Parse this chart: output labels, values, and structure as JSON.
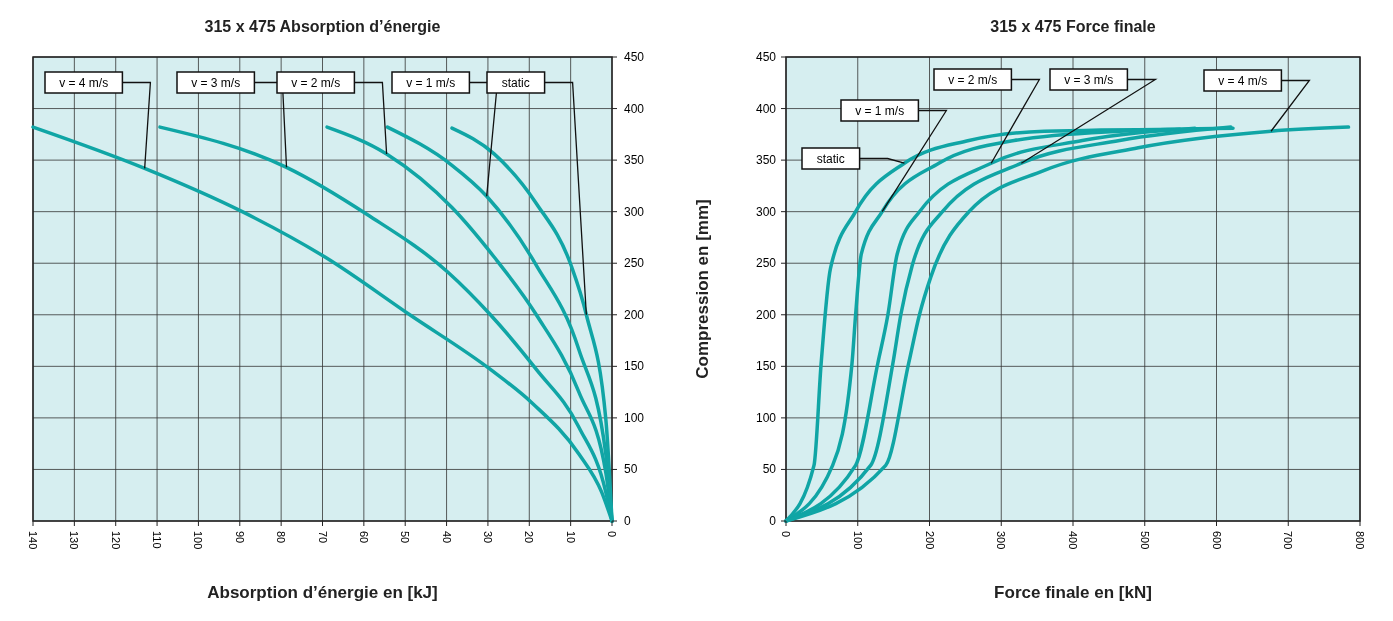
{
  "chart_data": [
    {
      "type": "line",
      "title": "315 x 475  Absorption d’énergie",
      "xlabel": "Absorption d’énergie en [kJ]",
      "xlim": [
        140,
        0
      ],
      "xticks": [
        140,
        130,
        120,
        110,
        100,
        90,
        80,
        70,
        60,
        50,
        40,
        30,
        20,
        10,
        0
      ],
      "ylim": [
        0,
        450
      ],
      "yticks": [
        0,
        50,
        100,
        150,
        200,
        250,
        300,
        350,
        400,
        450
      ],
      "grid": true,
      "series": [
        {
          "name": "v = 4 m/s",
          "color": "#10a5a5",
          "x": [
            140,
            113,
            89.4,
            69.4,
            48.9,
            29.4,
            19.2,
            8,
            2.5,
            0
          ],
          "values": [
            382,
            342,
            300,
            256,
            200,
            147,
            114,
            65,
            28,
            0
          ]
        },
        {
          "name": "v = 3 m/s",
          "color": "#10a5a5",
          "x": [
            109.3,
            78.7,
            59.1,
            39.6,
            29.4,
            18.3,
            8,
            1.5,
            0
          ],
          "values": [
            382,
            343,
            297,
            241,
            200,
            147,
            91,
            28,
            0
          ]
        },
        {
          "name": "v = 2 m/s",
          "color": "#10a5a5",
          "x": [
            68.9,
            54.5,
            38.7,
            28.5,
            18.3,
            8,
            1.5,
            0
          ],
          "values": [
            382,
            356,
            304,
            256,
            200,
            125,
            47,
            0
          ]
        },
        {
          "name": "v = 1 m/s",
          "color": "#10a5a5",
          "x": [
            54.3,
            38.7,
            30.3,
            18.3,
            8,
            1.5,
            0
          ],
          "values": [
            382,
            345,
            315,
            248,
            166,
            65,
            0
          ]
        },
        {
          "name": "static",
          "color": "#10a5a5",
          "x": [
            38.7,
            28.5,
            18.3,
            9.9,
            6.2,
            1.5,
            0
          ],
          "values": [
            381,
            356,
            308,
            248,
            200,
            99,
            0
          ]
        }
      ]
    },
    {
      "type": "line",
      "title": "315 x 475   Force finale",
      "xlabel": "Force finale en [kN]",
      "ylabel": "Compression en [mm]",
      "xlim": [
        0,
        800
      ],
      "xticks": [
        0,
        100,
        200,
        300,
        400,
        500,
        600,
        700,
        800
      ],
      "ylim": [
        0,
        450
      ],
      "yticks": [
        0,
        50,
        100,
        150,
        200,
        250,
        300,
        350,
        400,
        450
      ],
      "grid": true,
      "series": [
        {
          "name": "static",
          "color": "#10a5a5",
          "x": [
            0,
            39,
            49,
            62,
            97,
            165,
            255,
            360,
            549
          ],
          "values": [
            0,
            54,
            153,
            245,
            300,
            347,
            369,
            378,
            380
          ]
        },
        {
          "name": "v = 1 m/s",
          "color": "#10a5a5",
          "x": [
            0,
            65,
            92,
            97,
            105,
            134,
            213,
            318,
            465,
            623
          ],
          "values": [
            0,
            54,
            153,
            200,
            259,
            300,
            347,
            369,
            378,
            381
          ]
        },
        {
          "name": "v = 2 m/s",
          "color": "#10a5a5",
          "x": [
            0,
            97,
            128,
            142,
            155,
            186,
            286,
            413,
            570
          ],
          "values": [
            0,
            54,
            153,
            200,
            259,
            300,
            347,
            369,
            381
          ]
        },
        {
          "name": "v = 3 m/s",
          "color": "#10a5a5",
          "x": [
            0,
            118,
            149,
            160,
            176,
            218,
            328,
            465,
            620
          ],
          "values": [
            0,
            54,
            153,
            200,
            248,
            300,
            347,
            369,
            382
          ]
        },
        {
          "name": "v = 4 m/s",
          "color": "#10a5a5",
          "x": [
            0,
            139,
            171,
            186,
            202,
            255,
            360,
            491,
            676,
            784
          ],
          "values": [
            0,
            54,
            153,
            200,
            237,
            300,
            340,
            362,
            378,
            382
          ]
        }
      ]
    }
  ]
}
